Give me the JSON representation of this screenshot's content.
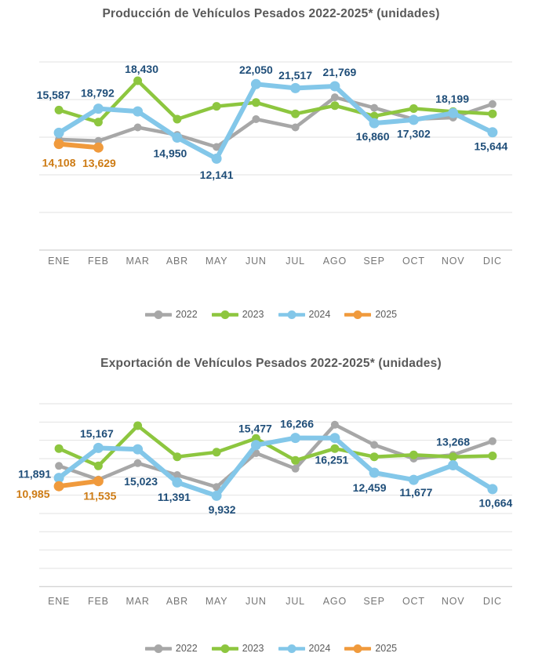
{
  "legend": {
    "items": [
      {
        "label": "2022",
        "color": "#a7a7a7"
      },
      {
        "label": "2023",
        "color": "#8dc63f"
      },
      {
        "label": "2024",
        "color": "#83c7e9"
      },
      {
        "label": "2025",
        "color": "#f09a3c"
      }
    ]
  },
  "chart_data": [
    {
      "id": "produccion",
      "type": "line",
      "title": "Producción de Vehículos Pesados 2022-2025* (unidades)",
      "categories": [
        "ENE",
        "FEB",
        "MAR",
        "ABR",
        "MAY",
        "JUN",
        "JUL",
        "AGO",
        "SEP",
        "OCT",
        "NOV",
        "DIC"
      ],
      "ylim": [
        0,
        25000
      ],
      "grid_step": 5000,
      "grid": "on",
      "legend_position": "bottom",
      "series": [
        {
          "name": "2022",
          "color": "#a7a7a7",
          "values": [
            14700,
            14500,
            16300,
            15300,
            13700,
            17400,
            16300,
            20300,
            18900,
            17400,
            17600,
            19400
          ]
        },
        {
          "name": "2023",
          "color": "#8dc63f",
          "values": [
            18600,
            17000,
            22500,
            17400,
            19100,
            19600,
            18100,
            19200,
            17800,
            18800,
            18400,
            18100
          ]
        },
        {
          "name": "2024",
          "color": "#83c7e9",
          "values": [
            15587,
            18792,
            18430,
            14950,
            12141,
            22050,
            21517,
            21769,
            16860,
            17302,
            18199,
            15644
          ],
          "labels_shown": true,
          "label_color": "#1f4e79",
          "label_offsets": [
            [
              -7,
              -48
            ],
            [
              -1,
              -20
            ],
            [
              5,
              -54
            ],
            [
              -9,
              20
            ],
            [
              0,
              21
            ],
            [
              0,
              -18
            ],
            [
              0,
              -16
            ],
            [
              6,
              -18
            ],
            [
              -2,
              17
            ],
            [
              0,
              18
            ],
            [
              -1,
              -18
            ],
            [
              -2,
              18
            ]
          ]
        },
        {
          "name": "2025",
          "color": "#f09a3c",
          "values": [
            14108,
            13629
          ],
          "labels_shown": true,
          "label_color": "#cd7b14",
          "label_offsets": [
            [
              0,
              24
            ],
            [
              1,
              20
            ]
          ]
        }
      ]
    },
    {
      "id": "exportacion",
      "type": "line",
      "title": "Exportación de Vehículos Pesados 2022-2025* (unidades)",
      "categories": [
        "ENE",
        "FEB",
        "MAR",
        "ABR",
        "MAY",
        "JUN",
        "JUL",
        "AGO",
        "SEP",
        "OCT",
        "NOV",
        "DIC"
      ],
      "ylim": [
        0,
        20000
      ],
      "grid_step": 2000,
      "grid": "on",
      "legend_position": "bottom",
      "series": [
        {
          "name": "2022",
          "color": "#a7a7a7",
          "values": [
            13200,
            11700,
            13500,
            12200,
            10900,
            14600,
            12900,
            17700,
            15500,
            14000,
            14400,
            15900
          ]
        },
        {
          "name": "2023",
          "color": "#8dc63f",
          "values": [
            15100,
            13200,
            17600,
            14200,
            14700,
            16200,
            13800,
            15100,
            14200,
            14400,
            14200,
            14300
          ]
        },
        {
          "name": "2024",
          "color": "#83c7e9",
          "values": [
            11891,
            15167,
            15023,
            11391,
            9932,
            15477,
            16266,
            16251,
            12459,
            11677,
            13268,
            10664
          ],
          "labels_shown": true,
          "label_color": "#1f4e79",
          "label_offsets": [
            [
              -31,
              -5
            ],
            [
              -2,
              -18
            ],
            [
              4,
              41
            ],
            [
              -4,
              19
            ],
            [
              7,
              18
            ],
            [
              -1,
              -21
            ],
            [
              2,
              -18
            ],
            [
              -4,
              28
            ],
            [
              -6,
              19
            ],
            [
              3,
              16
            ],
            [
              0,
              -30
            ],
            [
              4,
              18
            ]
          ]
        },
        {
          "name": "2025",
          "color": "#f09a3c",
          "values": [
            10985,
            11535
          ],
          "labels_shown": true,
          "label_color": "#cd7b14",
          "label_offsets": [
            [
              -33,
              10
            ],
            [
              2,
              19
            ]
          ]
        }
      ]
    }
  ]
}
